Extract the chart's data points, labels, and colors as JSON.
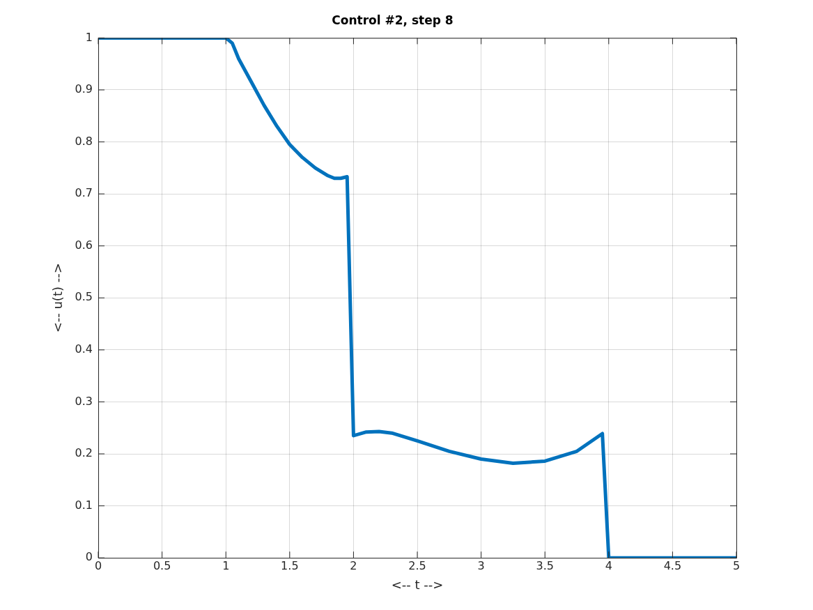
{
  "chart_data": {
    "type": "line",
    "title": "Control #2, step 8",
    "xlabel": "<-- t -->",
    "ylabel": "<-- u(t) -->",
    "xlim": [
      0,
      5
    ],
    "xticks": [
      0,
      0.5,
      1,
      1.5,
      2,
      2.5,
      3,
      3.5,
      4,
      4.5,
      5
    ],
    "ylim": [
      0,
      1
    ],
    "yticks": [
      0,
      0.1,
      0.2,
      0.3,
      0.4,
      0.5,
      0.6,
      0.7,
      0.8,
      0.9,
      1
    ],
    "grid": true,
    "legend": false,
    "marker": "none",
    "line_style": "solid",
    "series": [
      {
        "color": "#0072bd",
        "x": [
          0,
          1,
          1.05,
          1.1,
          1.2,
          1.3,
          1.4,
          1.5,
          1.6,
          1.7,
          1.8,
          1.85,
          1.9,
          1.95,
          2,
          2.1,
          2.2,
          2.3,
          2.5,
          2.75,
          3,
          3.25,
          3.5,
          3.75,
          3.95,
          4,
          5
        ],
        "values": [
          1,
          1,
          0.99,
          0.96,
          0.915,
          0.87,
          0.83,
          0.795,
          0.77,
          0.75,
          0.735,
          0.73,
          0.73,
          0.733,
          0.235,
          0.242,
          0.243,
          0.24,
          0.225,
          0.205,
          0.19,
          0.182,
          0.186,
          0.205,
          0.239,
          0,
          0
        ]
      }
    ]
  }
}
